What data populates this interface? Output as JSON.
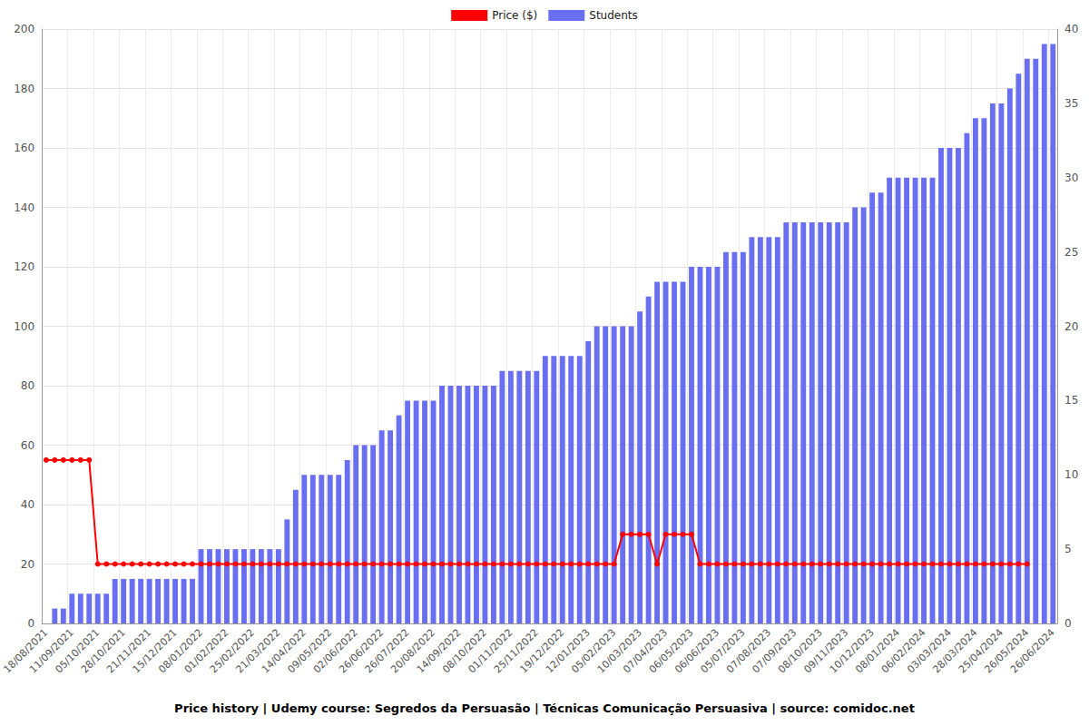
{
  "chart_data": {
    "type": "bar",
    "title": "Price history | Udemy course: Segredos da Persuasão | Técnicas Comunicação Persuasiva | source: comidoc.net",
    "categories": [
      "18/08/2021",
      null,
      null,
      "11/09/2021",
      null,
      null,
      "05/10/2021",
      null,
      null,
      "28/10/2021",
      null,
      null,
      "21/11/2021",
      null,
      null,
      "15/12/2021",
      null,
      null,
      "08/01/2022",
      null,
      null,
      "01/02/2022",
      null,
      null,
      "25/02/2022",
      null,
      null,
      "21/03/2022",
      null,
      null,
      "14/04/2022",
      null,
      null,
      "09/05/2022",
      null,
      null,
      "02/06/2022",
      null,
      null,
      "26/06/2022",
      null,
      null,
      "26/07/2022",
      null,
      null,
      "20/08/2022",
      null,
      null,
      "14/09/2022",
      null,
      null,
      "08/10/2022",
      null,
      null,
      "01/11/2022",
      null,
      null,
      "25/11/2022",
      null,
      null,
      "19/12/2022",
      null,
      null,
      "12/01/2023",
      null,
      null,
      "05/02/2023",
      null,
      null,
      "10/03/2023",
      null,
      null,
      "07/04/2023",
      null,
      null,
      "06/05/2023",
      null,
      null,
      "06/06/2023",
      null,
      null,
      "05/07/2023",
      null,
      null,
      "07/08/2023",
      null,
      null,
      "07/09/2023",
      null,
      null,
      "08/10/2023",
      null,
      null,
      "09/11/2023",
      null,
      null,
      "10/12/2023",
      null,
      null,
      "08/01/2024",
      null,
      null,
      "06/02/2024",
      null,
      null,
      "03/03/2024",
      null,
      null,
      "28/03/2024",
      null,
      null,
      "25/04/2024",
      null,
      null,
      "26/05/2024",
      null,
      null,
      "26/06/2024"
    ],
    "series": [
      {
        "name": "Price ($)",
        "type": "line",
        "color": "#ff0000",
        "marker": "circle",
        "axis": "y",
        "values": [
          55,
          55,
          55,
          55,
          55,
          55,
          20,
          20,
          20,
          20,
          20,
          20,
          20,
          20,
          20,
          20,
          20,
          20,
          20,
          20,
          20,
          20,
          20,
          20,
          20,
          20,
          20,
          20,
          20,
          20,
          20,
          20,
          20,
          20,
          20,
          20,
          20,
          20,
          20,
          20,
          20,
          20,
          20,
          20,
          20,
          20,
          20,
          20,
          20,
          20,
          20,
          20,
          20,
          20,
          20,
          20,
          20,
          20,
          20,
          20,
          20,
          20,
          20,
          20,
          20,
          20,
          20,
          30,
          30,
          30,
          30,
          20,
          30,
          30,
          30,
          30,
          20,
          20,
          20,
          20,
          20,
          20,
          20,
          20,
          20,
          20,
          20,
          20,
          20,
          20,
          20,
          20,
          20,
          20,
          20,
          20,
          20,
          20,
          20,
          20,
          20,
          20,
          20,
          20,
          20,
          20,
          20,
          20,
          20,
          20,
          20,
          20,
          20,
          20,
          20,
          null,
          null,
          null
        ]
      },
      {
        "name": "Students",
        "type": "bar",
        "color": "#6a6ef0",
        "axis": "y2",
        "values": [
          0,
          1,
          1,
          2,
          2,
          2,
          2,
          2,
          3,
          3,
          3,
          3,
          3,
          3,
          3,
          3,
          3,
          3,
          5,
          5,
          5,
          5,
          5,
          5,
          5,
          5,
          5,
          5,
          7,
          9,
          10,
          10,
          10,
          10,
          10,
          11,
          12,
          12,
          12,
          13,
          13,
          14,
          15,
          15,
          15,
          15,
          16,
          16,
          16,
          16,
          16,
          16,
          16,
          17,
          17,
          17,
          17,
          17,
          18,
          18,
          18,
          18,
          18,
          19,
          20,
          20,
          20,
          20,
          20,
          21,
          22,
          23,
          23,
          23,
          23,
          24,
          24,
          24,
          24,
          25,
          25,
          25,
          26,
          26,
          26,
          26,
          27,
          27,
          27,
          27,
          27,
          27,
          27,
          27,
          28,
          28,
          29,
          29,
          30,
          30,
          30,
          30,
          30,
          30,
          32,
          32,
          32,
          33,
          34,
          34,
          35,
          35,
          36,
          37,
          38,
          38,
          39,
          39
        ]
      }
    ],
    "ylim": [
      0,
      200
    ],
    "yticks": [
      0,
      20,
      40,
      60,
      80,
      100,
      120,
      140,
      160,
      180,
      200
    ],
    "y2lim": [
      0,
      40
    ],
    "y2ticks": [
      0,
      5,
      10,
      15,
      20,
      25,
      30,
      35,
      40
    ],
    "grid": true,
    "legend": "top"
  }
}
